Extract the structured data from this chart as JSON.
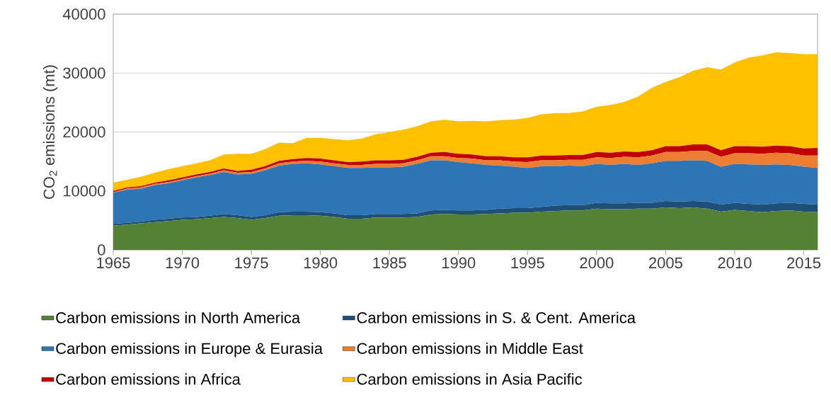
{
  "chart_data": {
    "type": "area",
    "stacked": true,
    "ylabel": "CO$_{2}$ emissions (mt)",
    "x": [
      1965,
      1966,
      1967,
      1968,
      1969,
      1970,
      1971,
      1972,
      1973,
      1974,
      1975,
      1976,
      1977,
      1978,
      1979,
      1980,
      1981,
      1982,
      1983,
      1984,
      1985,
      1986,
      1987,
      1988,
      1989,
      1990,
      1991,
      1992,
      1993,
      1994,
      1995,
      1996,
      1997,
      1998,
      1999,
      2000,
      2001,
      2002,
      2003,
      2004,
      2005,
      2006,
      2007,
      2008,
      2009,
      2010,
      2011,
      2012,
      2013,
      2014,
      2015,
      2016
    ],
    "series": [
      {
        "name": "Carbon emissions in North America",
        "color": "#548235",
        "values": [
          4100,
          4300,
          4500,
          4700,
          4900,
          5100,
          5200,
          5400,
          5600,
          5400,
          5100,
          5400,
          5800,
          5900,
          5900,
          5800,
          5600,
          5300,
          5300,
          5500,
          5500,
          5500,
          5600,
          6000,
          6100,
          6000,
          6000,
          6100,
          6200,
          6300,
          6300,
          6500,
          6600,
          6700,
          6700,
          7000,
          6900,
          6900,
          7000,
          7000,
          7200,
          7100,
          7200,
          7000,
          6500,
          6800,
          6600,
          6400,
          6600,
          6700,
          6500,
          6400
        ]
      },
      {
        "name": "Carbon emissions in S. & Cent. America",
        "color": "#1f4e79",
        "values": [
          300,
          300,
          300,
          400,
          400,
          400,
          400,
          400,
          500,
          500,
          500,
          500,
          600,
          600,
          600,
          600,
          600,
          600,
          600,
          600,
          600,
          600,
          600,
          700,
          700,
          700,
          700,
          700,
          800,
          800,
          800,
          800,
          900,
          900,
          900,
          1000,
          1000,
          1000,
          1000,
          1000,
          1100,
          1100,
          1100,
          1200,
          1200,
          1200,
          1200,
          1300,
          1300,
          1300,
          1300,
          1300
        ]
      },
      {
        "name": "Carbon emissions in Europe & Eurasia",
        "color": "#2e75b6",
        "values": [
          5300,
          5600,
          5600,
          5900,
          6000,
          6300,
          6700,
          6900,
          7100,
          6900,
          7300,
          7600,
          7900,
          8100,
          8200,
          8100,
          8000,
          8000,
          8000,
          7900,
          7900,
          8000,
          8400,
          8500,
          8400,
          8200,
          8000,
          7600,
          7300,
          7000,
          6800,
          6900,
          6700,
          6700,
          6600,
          6600,
          6500,
          6700,
          6400,
          6700,
          6800,
          6900,
          6900,
          6900,
          6400,
          6600,
          6700,
          6700,
          6600,
          6400,
          6300,
          6200
        ]
      },
      {
        "name": "Carbon emissions in Middle East",
        "color": "#ed7d31",
        "values": [
          100,
          200,
          200,
          200,
          200,
          200,
          200,
          200,
          300,
          300,
          300,
          300,
          400,
          400,
          400,
          500,
          500,
          500,
          500,
          600,
          600,
          600,
          600,
          700,
          700,
          700,
          800,
          800,
          900,
          900,
          1000,
          1000,
          1000,
          1000,
          1100,
          1100,
          1200,
          1200,
          1300,
          1300,
          1500,
          1500,
          1600,
          1700,
          1700,
          1800,
          1900,
          1900,
          2000,
          2000,
          1900,
          2100
        ]
      },
      {
        "name": "Carbon emissions in Africa",
        "color": "#c00000",
        "values": [
          200,
          200,
          200,
          200,
          300,
          300,
          300,
          300,
          300,
          300,
          400,
          400,
          400,
          400,
          500,
          500,
          500,
          500,
          600,
          600,
          600,
          600,
          600,
          600,
          700,
          700,
          700,
          700,
          700,
          700,
          800,
          800,
          800,
          800,
          800,
          900,
          900,
          900,
          900,
          900,
          1000,
          1000,
          1100,
          1100,
          1100,
          1200,
          1200,
          1200,
          1200,
          1200,
          1200,
          1300
        ]
      },
      {
        "name": "Carbon emissions in Asia Pacific",
        "color": "#ffc000",
        "values": [
          1400,
          1300,
          1600,
          1700,
          1900,
          1900,
          1900,
          2000,
          2400,
          2900,
          2700,
          2900,
          3100,
          2700,
          3400,
          3500,
          3600,
          3700,
          3900,
          4400,
          4800,
          5100,
          5200,
          5300,
          5500,
          5500,
          5700,
          5900,
          6100,
          6400,
          6700,
          7000,
          7200,
          7100,
          7400,
          7700,
          8100,
          8400,
          9400,
          10600,
          10900,
          11700,
          12500,
          13100,
          13700,
          14200,
          15000,
          15500,
          15800,
          15800,
          16000,
          15900
        ]
      }
    ],
    "xlim": [
      1965,
      2016
    ],
    "xticks": [
      1965,
      1970,
      1975,
      1980,
      1985,
      1990,
      1995,
      2000,
      2005,
      2010,
      2015
    ],
    "ylim": [
      0,
      40000
    ],
    "yticks": [
      0,
      10000,
      20000,
      30000,
      40000
    ],
    "grid": "y",
    "legend": "bottom"
  }
}
